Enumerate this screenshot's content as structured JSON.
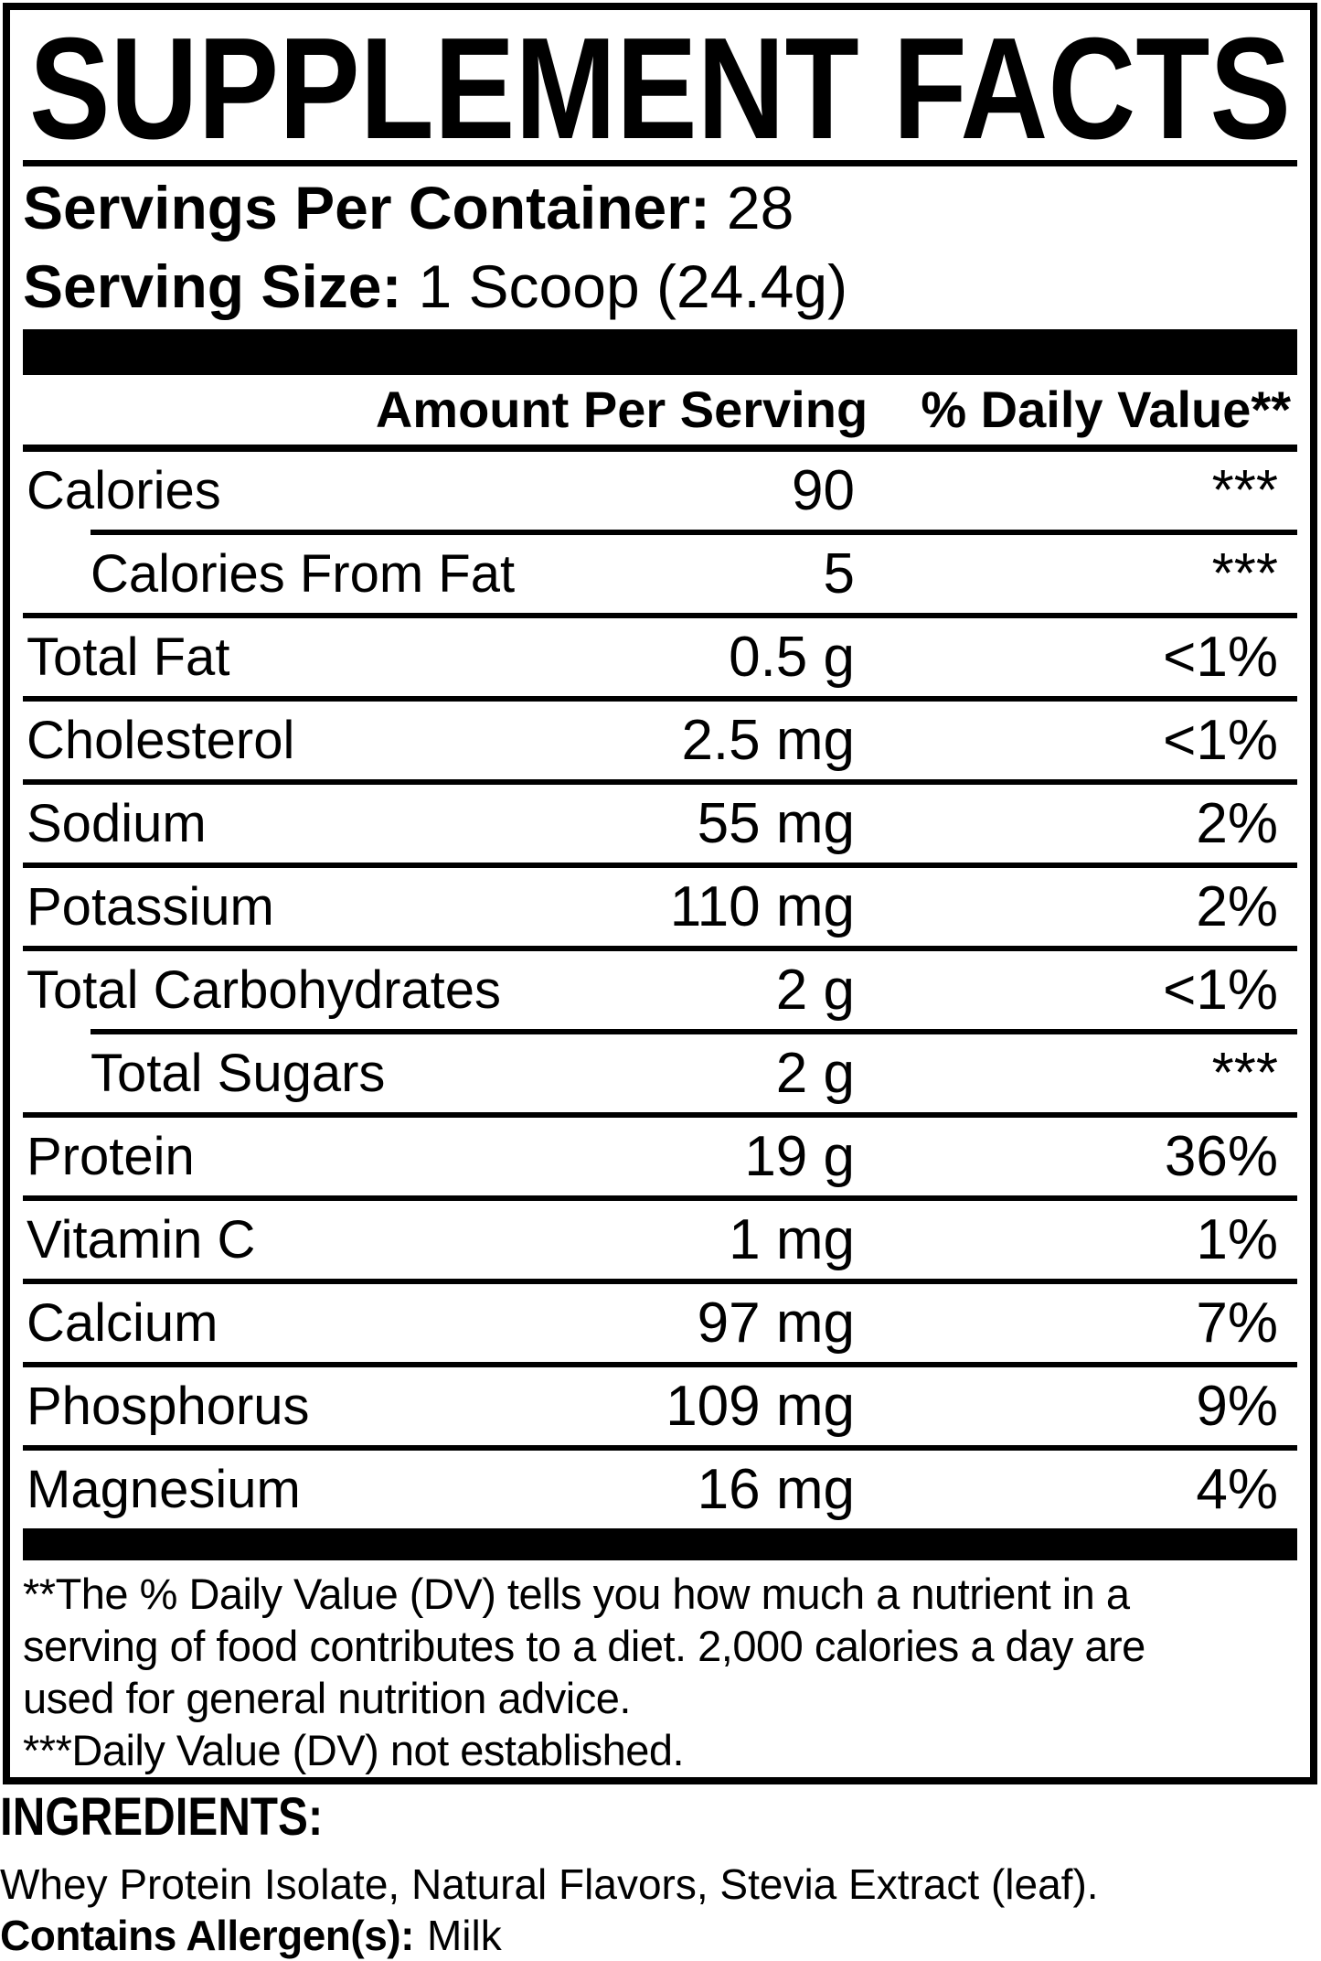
{
  "title": "SUPPLEMENT FACTS",
  "serving": {
    "servings_label": "Servings Per Container:",
    "servings_value": "28",
    "size_label": "Serving Size:",
    "size_value": "1 Scoop (24.4g)"
  },
  "table": {
    "amount_header": "Amount Per Serving",
    "dv_header": "% Daily Value**",
    "rows": [
      {
        "name": "Calories",
        "amount": "90",
        "dv": "***"
      },
      {
        "name": "Calories From Fat",
        "amount": "5",
        "dv": "***"
      },
      {
        "name": "Total Fat",
        "amount": "0.5 g",
        "dv": "<1%"
      },
      {
        "name": "Cholesterol",
        "amount": "2.5 mg",
        "dv": "<1%"
      },
      {
        "name": "Sodium",
        "amount": "55 mg",
        "dv": "2%"
      },
      {
        "name": "Potassium",
        "amount": "110 mg",
        "dv": "2%"
      },
      {
        "name": "Total Carbohydrates",
        "amount": "2 g",
        "dv": "<1%"
      },
      {
        "name": "Total Sugars",
        "amount": "2 g",
        "dv": "***"
      },
      {
        "name": "Protein",
        "amount": "19 g",
        "dv": "36%"
      },
      {
        "name": "Vitamin C",
        "amount": "1 mg",
        "dv": "1%"
      },
      {
        "name": "Calcium",
        "amount": "97 mg",
        "dv": "7%"
      },
      {
        "name": "Phosphorus",
        "amount": "109 mg",
        "dv": "9%"
      },
      {
        "name": "Magnesium",
        "amount": "16 mg",
        "dv": "4%"
      }
    ]
  },
  "footnotes": {
    "line1": "**The % Daily Value (DV) tells you how much a nutrient in a",
    "line2": "serving of food contributes to a diet. 2,000 calories a day are",
    "line3": "used for general nutrition advice.",
    "line4": "***Daily Value (DV) not established."
  },
  "ingredients": {
    "heading": "INGREDIENTS:",
    "list": "Whey Protein Isolate, Natural Flavors, Stevia Extract (leaf).",
    "allergen_label": "Contains Allergen(s):",
    "allergen_value": "Milk"
  },
  "colors": {
    "ink": "#000000",
    "paper": "#ffffff"
  }
}
